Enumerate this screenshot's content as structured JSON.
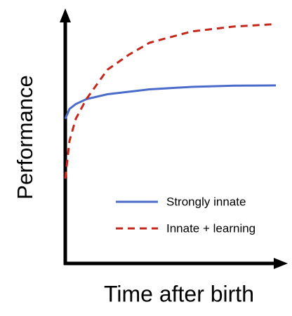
{
  "chart_data": {
    "type": "line",
    "xlabel": "Time after birth",
    "ylabel": "Performance",
    "x": [
      0,
      2,
      5,
      10,
      20,
      30,
      40,
      60,
      80,
      100
    ],
    "series": [
      {
        "name": "Strongly innate",
        "color": "#4a6bc9",
        "linestyle": "solid",
        "values": [
          59,
          63,
          65,
          67,
          69,
          70,
          71,
          72,
          72.5,
          72.6
        ]
      },
      {
        "name": "Innate + learning",
        "color": "#c4281c",
        "linestyle": "dashed",
        "values": [
          34.6,
          50,
          59,
          67,
          79,
          85,
          90,
          94.6,
          96.6,
          97.6
        ]
      }
    ],
    "xlim": [
      0,
      100
    ],
    "ylim": [
      0,
      100
    ],
    "legend": "lower right"
  }
}
